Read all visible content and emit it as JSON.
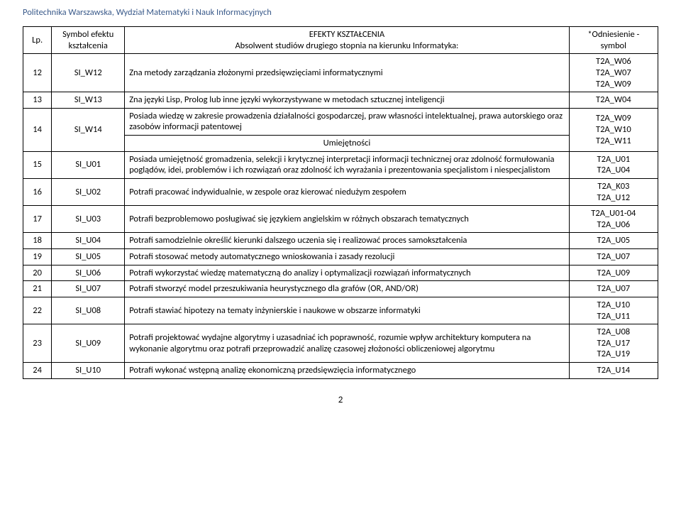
{
  "header": "Politechnika Warszawska, Wydział Matematyki i Nauk Informacyjnych",
  "cols": {
    "lp": "Lp.",
    "sym1": "Symbol efektu",
    "sym2": "kształcenia",
    "title1": "EFEKTY KSZTAŁCENIA",
    "title2": "Absolwent studiów drugiego stopnia na kierunku Informatyka:",
    "ref1": "*Odniesienie -",
    "ref2": "symbol"
  },
  "section": "Umiejętności",
  "rows": [
    {
      "lp": "12",
      "sym": "SI_W12",
      "desc": "Zna metody zarządzania złożonymi przedsięwzięciami informatycznymi",
      "ref": "T2A_W06\nT2A_W07\nT2A_W09"
    },
    {
      "lp": "13",
      "sym": "SI_W13",
      "desc": "Zna języki Lisp, Prolog lub inne języki wykorzystywane w metodach sztucznej inteligencji",
      "ref": "T2A_W04"
    },
    {
      "lp": "14",
      "sym": "SI_W14",
      "desc": "Posiada wiedzę w zakresie prowadzenia działalności gospodarczej, praw własności intelektualnej, prawa autorskiego oraz zasobów informacji patentowej",
      "ref": "T2A_W09\nT2A_W10\nT2A_W11"
    },
    {
      "lp": "15",
      "sym": "SI_U01",
      "desc": "Posiada umiejętność gromadzenia, selekcji i krytycznej interpretacji informacji technicznej oraz zdolność formułowania poglądów, idei, problemów i ich rozwiązań oraz zdolność ich wyrażania i prezentowania specjalistom i niespecjalistom",
      "ref": "T2A_U01\nT2A_U04"
    },
    {
      "lp": "16",
      "sym": "SI_U02",
      "desc": "Potrafi pracować indywidualnie, w zespole oraz kierować niedużym zespołem",
      "ref": "T2A_K03\nT2A_U12"
    },
    {
      "lp": "17",
      "sym": "SI_U03",
      "desc": "Potrafi bezproblemowo posługiwać się językiem angielskim w różnych obszarach tematycznych",
      "ref": "T2A_U01-04\nT2A_U06"
    },
    {
      "lp": "18",
      "sym": "SI_U04",
      "desc": "Potrafi samodzielnie określić kierunki dalszego uczenia się i realizować proces samokształcenia",
      "ref": "T2A_U05"
    },
    {
      "lp": "19",
      "sym": "SI_U05",
      "desc": "Potrafi stosować metody automatycznego wnioskowania i zasady rezolucji",
      "ref": "T2A_U07"
    },
    {
      "lp": "20",
      "sym": "SI_U06",
      "desc": "Potrafi wykorzystać wiedzę matematyczną do analizy i optymalizacji rozwiązań informatycznych",
      "ref": "T2A_U09"
    },
    {
      "lp": "21",
      "sym": "SI_U07",
      "desc": "Potrafi stworzyć model przeszukiwania heurystycznego dla grafów (OR, AND/OR)",
      "ref": "T2A_U07"
    },
    {
      "lp": "22",
      "sym": "SI_U08",
      "desc": "Potrafi stawiać hipotezy na tematy inżynierskie i naukowe w obszarze informatyki",
      "ref": "T2A_U10\nT2A_U11"
    },
    {
      "lp": "23",
      "sym": "SI_U09",
      "desc": "Potrafi projektować wydajne algorytmy i uzasadniać ich poprawność, rozumie wpływ architektury komputera na wykonanie algorytmu oraz potrafi przeprowadzić analizę czasowej złożoności obliczeniowej algorytmu",
      "ref": "T2A_U08\nT2A_U17\nT2A_U19"
    },
    {
      "lp": "24",
      "sym": "SI_U10",
      "desc": "Potrafi wykonać wstępną analizę ekonomiczną przedsięwzięcia informatycznego",
      "ref": "T2A_U14"
    }
  ],
  "pagenum": "2"
}
